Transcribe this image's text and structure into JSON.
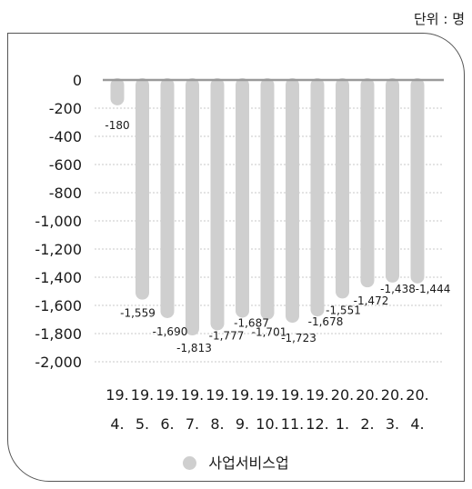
{
  "unit_label": "단위 : 명",
  "chart_data": {
    "type": "bar",
    "categories": [
      [
        "19.",
        "4."
      ],
      [
        "19.",
        "5."
      ],
      [
        "19.",
        "6."
      ],
      [
        "19.",
        "7."
      ],
      [
        "19.",
        "8."
      ],
      [
        "19.",
        "9."
      ],
      [
        "19.",
        "10."
      ],
      [
        "19.",
        "11."
      ],
      [
        "19.",
        "12."
      ],
      [
        "20.",
        "1."
      ],
      [
        "20.",
        "2."
      ],
      [
        "20.",
        "3."
      ],
      [
        "20.",
        "4."
      ]
    ],
    "series": [
      {
        "name": "사업서비스업",
        "values": [
          -180,
          -1559,
          -1690,
          -1813,
          -1777,
          -1687,
          -1701,
          -1723,
          -1678,
          -1551,
          -1472,
          -1438,
          -1444
        ],
        "labels": [
          "-180",
          "-1,559",
          "-1,690",
          "-1,813",
          "-1,777",
          "-1,687",
          "-1,701",
          "-1,723",
          "-1,678",
          "-1,551",
          "-1,472",
          "-1,438",
          "-1,444"
        ]
      }
    ],
    "yticks": [
      "0",
      "-200",
      "-400",
      "-600",
      "-800",
      "-1,000",
      "-1,200",
      "-1,400",
      "-1,600",
      "-1,800",
      "-2,000"
    ],
    "ylim": [
      -2000,
      0
    ],
    "grid": true,
    "legend_position": "bottom",
    "colors": {
      "bar": "#cfcfcf",
      "zero_line": "#9a9a9a",
      "grid": "#c8c8c8"
    }
  }
}
